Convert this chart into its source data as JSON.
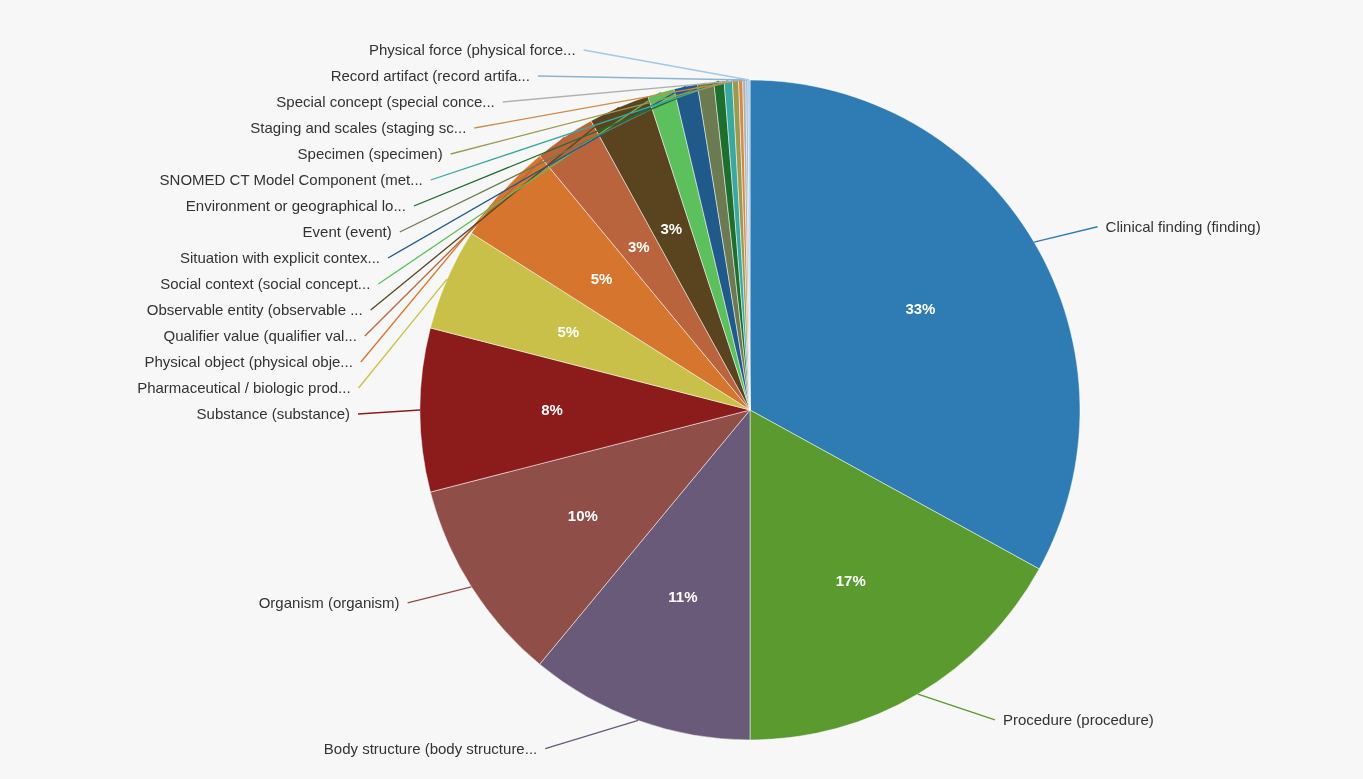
{
  "chart_data": {
    "type": "pie",
    "categories": [
      "Clinical finding (finding)",
      "Procedure (procedure)",
      "Body structure (body structure...",
      "Organism (organism)",
      "Substance (substance)",
      "Pharmaceutical / biologic prod...",
      "Physical object (physical obje...",
      "Qualifier value (qualifier val...",
      "Observable entity (observable ...",
      "Social context (social concept...",
      "Situation with explicit contex...",
      "Event (event)",
      "Environment or geographical lo...",
      "SNOMED CT Model Component (met...",
      "Specimen (specimen)",
      "Staging and scales (staging sc...",
      "Special concept (special conce...",
      "Record artifact (record artifa...",
      "Physical force (physical force..."
    ],
    "values": [
      33,
      17,
      11,
      10,
      8,
      5,
      5,
      3,
      3,
      1.3,
      1.15,
      0.8,
      0.5,
      0.4,
      0.3,
      0.2,
      0.15,
      0.1,
      0.1
    ],
    "value_labels": [
      "33%",
      "17%",
      "11%",
      "10%",
      "8%",
      "5%",
      "5%",
      "3%",
      "3%",
      null,
      null,
      null,
      null,
      null,
      null,
      null,
      null,
      null,
      null
    ],
    "colors": [
      "#2f7cb5",
      "#5a9a2e",
      "#6a5a7a",
      "#8f4e47",
      "#8c1c1c",
      "#c9c04a",
      "#d6762e",
      "#b9643c",
      "#5a4420",
      "#5cc05c",
      "#1f5a8a",
      "#6b7a50",
      "#1e6e2e",
      "#3aa8a0",
      "#9a9a50",
      "#d08a4a",
      "#b0b0b0",
      "#8ab4d0",
      "#a0c8e8"
    ]
  }
}
